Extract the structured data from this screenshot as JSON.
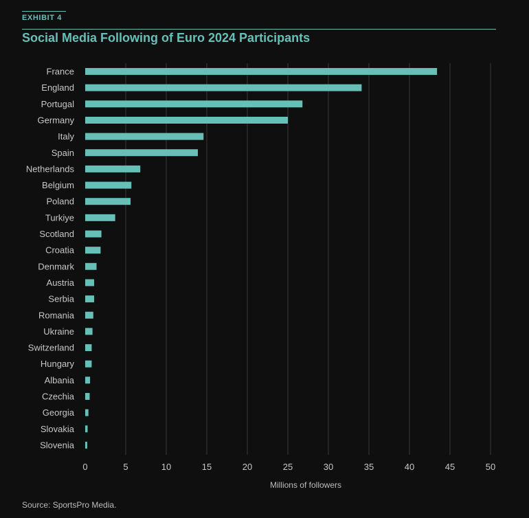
{
  "header": {
    "exhibit_label": "EXHIBIT 4",
    "title": "Social Media Following of Euro 2024 Participants"
  },
  "footer": {
    "source": "Source: SportsPro Media."
  },
  "colors": {
    "background": "#0f0f0f",
    "accent": "#66c0b8",
    "bar": "#66c0b8",
    "grid": "#3a3a3a",
    "text": "#c8c8c8"
  },
  "chart_data": {
    "type": "bar",
    "orientation": "horizontal",
    "title": "Social Media Following of Euro 2024 Participants",
    "xlabel": "Millions of followers",
    "ylabel": "",
    "xlim": [
      0,
      50
    ],
    "xticks": [
      0,
      5,
      10,
      15,
      20,
      25,
      30,
      35,
      40,
      45,
      50
    ],
    "grid": "vertical",
    "categories": [
      "France",
      "England",
      "Portugal",
      "Germany",
      "Italy",
      "Spain",
      "Netherlands",
      "Belgium",
      "Poland",
      "Turkiye",
      "Scotland",
      "Croatia",
      "Denmark",
      "Austria",
      "Serbia",
      "Romania",
      "Ukraine",
      "Switzerland",
      "Hungary",
      "Albania",
      "Czechia",
      "Georgia",
      "Slovakia",
      "Slovenia"
    ],
    "values": [
      43.4,
      34.1,
      26.8,
      25.0,
      14.6,
      13.9,
      6.8,
      5.7,
      5.6,
      3.7,
      2.0,
      1.9,
      1.4,
      1.1,
      1.1,
      1.0,
      0.9,
      0.8,
      0.8,
      0.6,
      0.55,
      0.4,
      0.3,
      0.25
    ]
  }
}
